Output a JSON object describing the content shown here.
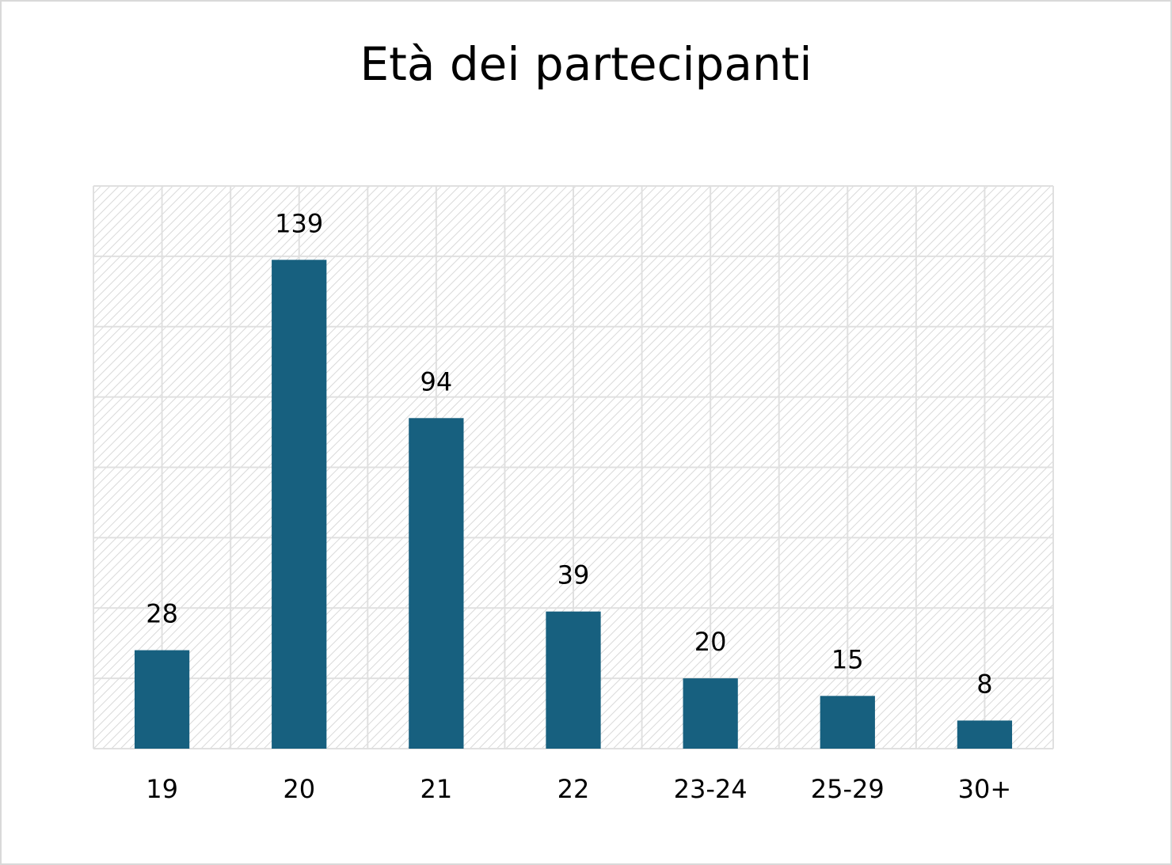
{
  "chart_data": {
    "type": "bar",
    "title": "Età dei partecipanti",
    "categories": [
      "19",
      "20",
      "21",
      "22",
      "23-24",
      "25-29",
      "30+"
    ],
    "values": [
      28,
      139,
      94,
      39,
      20,
      15,
      8
    ],
    "color": "#17607f",
    "ylim": [
      0,
      160
    ],
    "yticks": [
      0,
      20,
      40,
      60,
      80,
      100,
      120,
      140,
      160
    ],
    "grid": true
  }
}
